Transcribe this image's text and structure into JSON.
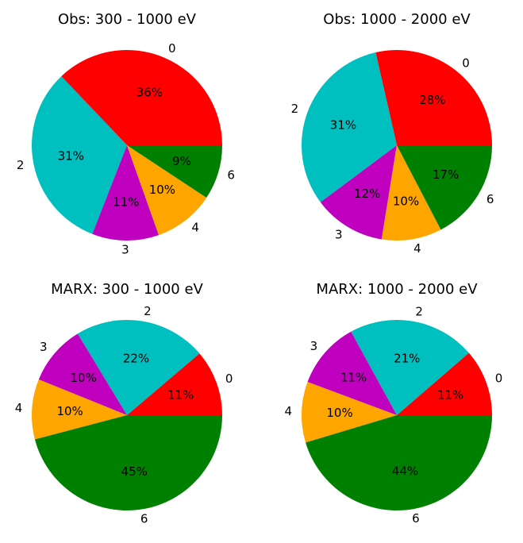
{
  "chart_data": [
    {
      "type": "pie",
      "title": "Obs: 300 - 1000 eV",
      "categories": [
        "0",
        "2",
        "3",
        "4",
        "6"
      ],
      "values": [
        36,
        31,
        11,
        10,
        9
      ],
      "value_labels": [
        "36%",
        "31%",
        "11%",
        "10%",
        "9%"
      ],
      "colors": [
        "#ff0000",
        "#00bfbf",
        "#bf00bf",
        "#ffa500",
        "#008000"
      ]
    },
    {
      "type": "pie",
      "title": "Obs: 1000 - 2000 eV",
      "categories": [
        "0",
        "2",
        "3",
        "4",
        "6"
      ],
      "values": [
        28,
        31,
        12,
        10,
        17
      ],
      "value_labels": [
        "28%",
        "31%",
        "12%",
        "10%",
        "17%"
      ],
      "colors": [
        "#ff0000",
        "#00bfbf",
        "#bf00bf",
        "#ffa500",
        "#008000"
      ]
    },
    {
      "type": "pie",
      "title": "MARX: 300 - 1000 eV",
      "categories": [
        "0",
        "2",
        "3",
        "4",
        "6"
      ],
      "values": [
        11,
        22,
        10,
        10,
        45
      ],
      "value_labels": [
        "11%",
        "22%",
        "10%",
        "10%",
        "45%"
      ],
      "colors": [
        "#ff0000",
        "#00bfbf",
        "#bf00bf",
        "#ffa500",
        "#008000"
      ]
    },
    {
      "type": "pie",
      "title": "MARX: 1000 - 2000 eV",
      "categories": [
        "0",
        "2",
        "3",
        "4",
        "6"
      ],
      "values": [
        11,
        21,
        11,
        10,
        44
      ],
      "value_labels": [
        "11%",
        "21%",
        "11%",
        "10%",
        "44%"
      ],
      "colors": [
        "#ff0000",
        "#00bfbf",
        "#bf00bf",
        "#ffa500",
        "#008000"
      ]
    }
  ]
}
